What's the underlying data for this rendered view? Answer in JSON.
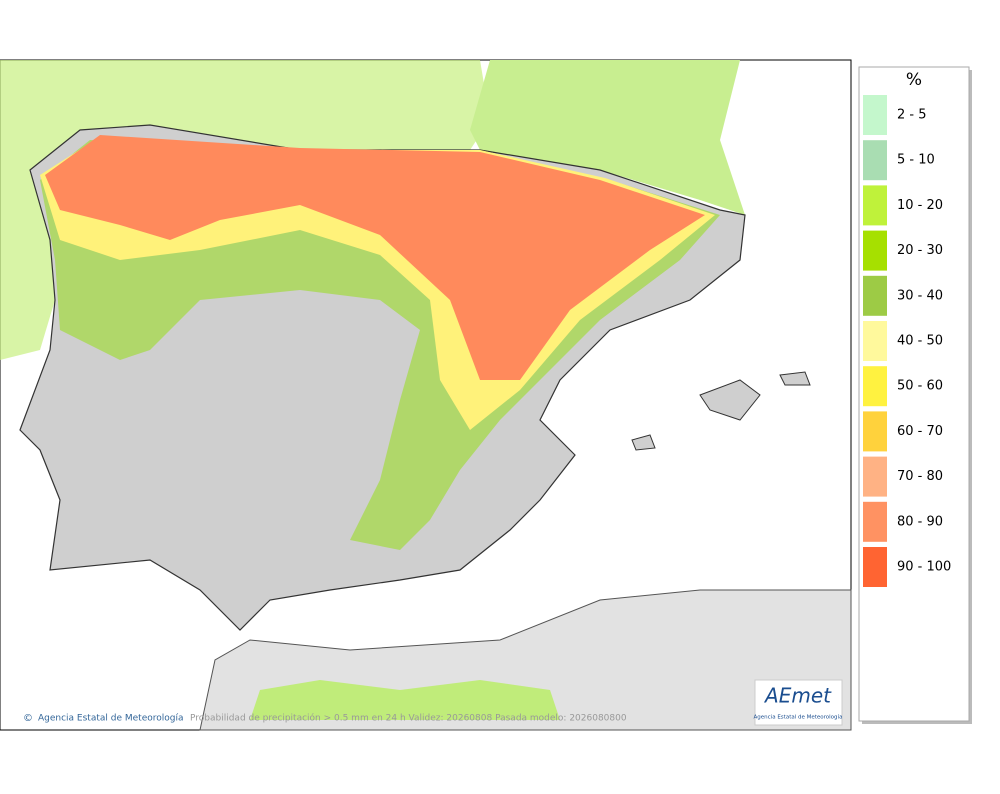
{
  "legend": {
    "title": "%",
    "items": [
      {
        "label": "2 - 5",
        "color": "#c4f7cc"
      },
      {
        "label": "5 - 10",
        "color": "#a9ddb2"
      },
      {
        "label": "10 - 20",
        "color": "#bff23a"
      },
      {
        "label": "20 - 30",
        "color": "#a6e000"
      },
      {
        "label": "30 - 40",
        "color": "#9dcb45"
      },
      {
        "label": "40 - 50",
        "color": "#fff99c"
      },
      {
        "label": "50 - 60",
        "color": "#fff240"
      },
      {
        "label": "60 - 70",
        "color": "#ffd23c"
      },
      {
        "label": "70 - 80",
        "color": "#ffb284"
      },
      {
        "label": "80 - 90",
        "color": "#ff9262"
      },
      {
        "label": "90 - 100",
        "color": "#ff6432"
      }
    ]
  },
  "footer": {
    "copyright": "©",
    "agency": "Agencia Estatal de Meteorología",
    "description": "Probabilidad de precipitación > 0.5 mm en 24 h Validez: 20260808 Pasada modelo: 2026080800"
  },
  "logo": {
    "name": "AEmet",
    "subtitle": "Agencia Estatal de Meteorología"
  }
}
